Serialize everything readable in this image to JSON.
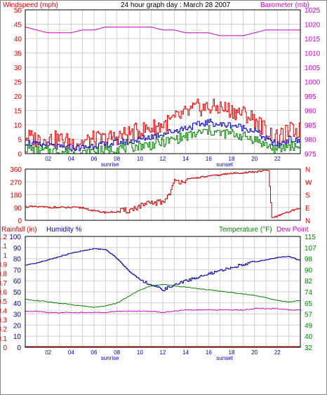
{
  "header": {
    "left_label": "Windspeed (mph)",
    "title": "24 hour graph day : March 28 2007",
    "right_label": "Barometer (mb)"
  },
  "colors": {
    "wind": "#e60000",
    "wind_avg": "#0000c8",
    "wind_low": "#008000",
    "barometer": "#cc00cc",
    "direction": "#cc0000",
    "humidity": "#0000aa",
    "temperature": "#008000",
    "dewpoint": "#cc00cc",
    "rainfall": "#cc0000",
    "grid": "#d0d0d0",
    "frame": "#000000"
  },
  "chart_data": [
    {
      "type": "line",
      "title": "24 hour graph day : March 28 2007",
      "ylabel": "Windspeed (mph)",
      "y2label": "Barometer (mb)",
      "x_ticks": [
        "02",
        "04",
        "06",
        "08",
        "10",
        "12",
        "14",
        "16",
        "18",
        "20",
        "22"
      ],
      "x_markers": [
        "sunrise",
        "sunset"
      ],
      "ylim": [
        0,
        50
      ],
      "y_ticks": [
        0,
        5,
        10,
        15,
        20,
        25,
        30,
        35,
        40,
        45,
        50
      ],
      "y2lim": [
        975,
        1025
      ],
      "y2_ticks": [
        975,
        980,
        985,
        990,
        995,
        1000,
        1005,
        1010,
        1015,
        1020,
        1025
      ],
      "hours": [
        0,
        1,
        2,
        3,
        4,
        5,
        6,
        7,
        8,
        9,
        10,
        11,
        12,
        13,
        14,
        15,
        16,
        17,
        18,
        19,
        20,
        21,
        22,
        23,
        24
      ],
      "series": [
        {
          "name": "Windspeed (mph)",
          "axis": "left",
          "values": [
            6,
            5,
            5,
            5,
            4,
            4,
            5,
            5,
            6,
            7,
            8,
            9,
            10,
            12,
            14,
            16,
            16,
            16,
            15,
            14,
            12,
            8,
            5,
            8,
            8
          ]
        },
        {
          "name": "Average",
          "axis": "left",
          "values": [
            4,
            3,
            3,
            2,
            2,
            2,
            3,
            3,
            4,
            4,
            5,
            6,
            7,
            8,
            9,
            10,
            11,
            10,
            10,
            9,
            8,
            5,
            3,
            5,
            4
          ]
        },
        {
          "name": "Low",
          "axis": "left",
          "values": [
            2,
            1,
            1,
            1,
            0,
            0,
            1,
            1,
            2,
            2,
            3,
            3,
            4,
            5,
            6,
            7,
            8,
            7,
            7,
            6,
            5,
            3,
            1,
            3,
            2
          ]
        },
        {
          "name": "Barometer (mb)",
          "axis": "right",
          "values": [
            1019,
            1018,
            1017,
            1017,
            1017,
            1018,
            1018,
            1019,
            1019,
            1019,
            1019,
            1019,
            1018,
            1018,
            1017,
            1017,
            1017,
            1016,
            1016,
            1016,
            1017,
            1018,
            1018,
            1018,
            1018
          ]
        }
      ]
    },
    {
      "type": "line",
      "ylim": [
        0,
        360
      ],
      "y_ticks": [
        0,
        90,
        180,
        270,
        360
      ],
      "y2_labels": [
        "N",
        "W",
        "S",
        "E",
        "N"
      ],
      "hours": [
        0,
        1,
        2,
        3,
        4,
        5,
        6,
        7,
        8,
        9,
        10,
        11,
        12,
        12.5,
        13,
        14,
        15,
        16,
        17,
        18,
        19,
        20,
        21,
        21.2,
        21.5,
        22,
        23,
        24
      ],
      "series": [
        {
          "name": "Wind direction",
          "axis": "left",
          "values": [
            95,
            95,
            92,
            90,
            90,
            88,
            65,
            55,
            60,
            70,
            100,
            120,
            130,
            180,
            270,
            285,
            300,
            310,
            320,
            330,
            335,
            340,
            350,
            350,
            15,
            30,
            60,
            90
          ]
        }
      ]
    },
    {
      "type": "line",
      "ylabel": "Rainfall (in)",
      "y2label": "Temperature (°F)",
      "legend": [
        "Rainfall (in)",
        "Humidity %",
        "Temperature (°F)",
        "Dew Point"
      ],
      "x_ticks": [
        "02",
        "04",
        "06",
        "08",
        "10",
        "12",
        "14",
        "16",
        "18",
        "20",
        "22"
      ],
      "x_markers": [
        "sunrise",
        "sunset"
      ],
      "humidity_ticks": [
        0,
        10,
        20,
        30,
        40,
        50,
        60,
        70,
        80,
        90,
        100
      ],
      "rain_ticks": [
        0,
        0.1,
        0.2,
        0.3,
        0.4,
        0.5,
        0.6,
        0.7,
        0.8,
        0.9,
        1,
        1.1,
        1.2
      ],
      "temp_ticks": [
        32,
        40,
        49,
        57,
        65,
        74,
        82,
        90,
        98,
        107,
        115
      ],
      "ylim": [
        0,
        100
      ],
      "y2lim": [
        32,
        115
      ],
      "hours": [
        0,
        1,
        2,
        3,
        4,
        5,
        6,
        7,
        8,
        9,
        10,
        11,
        12,
        13,
        14,
        15,
        16,
        17,
        18,
        19,
        20,
        21,
        22,
        23,
        24
      ],
      "series": [
        {
          "name": "Humidity %",
          "axis": "humidity",
          "values": [
            74,
            76,
            79,
            82,
            85,
            87,
            89,
            88,
            80,
            69,
            61,
            56,
            52,
            56,
            60,
            63,
            66,
            69,
            72,
            75,
            77,
            79,
            81,
            82,
            78
          ]
        },
        {
          "name": "Temperature (°F)",
          "axis": "temp",
          "values": [
            68,
            67,
            66,
            65,
            64,
            63,
            62,
            63,
            65,
            70,
            75,
            78,
            79,
            78,
            77,
            76,
            75,
            74,
            73,
            72,
            71,
            69,
            67,
            66,
            67
          ]
        },
        {
          "name": "Dew Point",
          "axis": "temp",
          "values": [
            59,
            59,
            58,
            58,
            58,
            58,
            58,
            58,
            59,
            59,
            59,
            59,
            58,
            59,
            60,
            60,
            60,
            60,
            60,
            60,
            61,
            61,
            61,
            60,
            60
          ]
        },
        {
          "name": "Rainfall (in)",
          "axis": "rain",
          "values": [
            0,
            0,
            0,
            0,
            0,
            0,
            0,
            0,
            0,
            0,
            0,
            0,
            0,
            0,
            0,
            0,
            0,
            0,
            0,
            0,
            0,
            0,
            0,
            0,
            0
          ]
        }
      ]
    }
  ]
}
